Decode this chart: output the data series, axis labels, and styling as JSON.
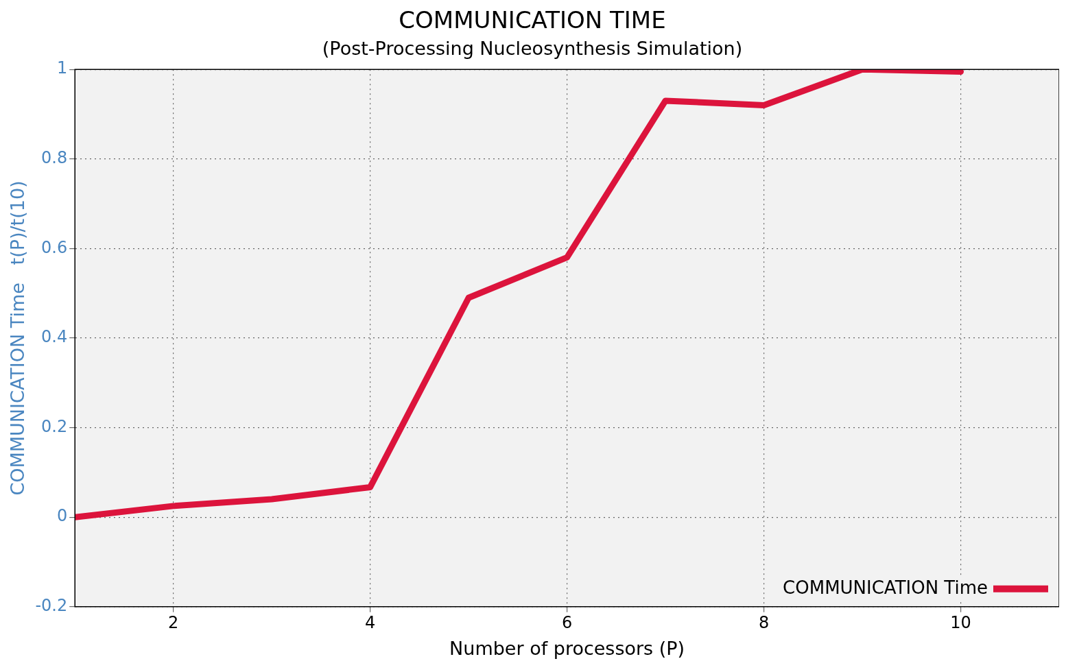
{
  "chart_data": {
    "type": "line",
    "title": "COMMUNICATION TIME",
    "subtitle": "(Post-Processing Nucleosynthesis Simulation)",
    "xlabel": "Number of processors (P)",
    "ylabel": "COMMUNICATION Time   t(P)/t(10)",
    "x": [
      1,
      2,
      3,
      4,
      5,
      6,
      7,
      8,
      9,
      10
    ],
    "series": [
      {
        "name": "COMMUNICATION Time",
        "color": "#dc143c",
        "values": [
          0,
          0.025,
          0.04,
          0.067,
          0.49,
          0.58,
          0.93,
          0.92,
          1.0,
          0.995
        ]
      }
    ],
    "xlim": [
      1,
      11
    ],
    "xticks": [
      2,
      4,
      6,
      8,
      10
    ],
    "ylim": [
      -0.2,
      1
    ],
    "yticks": [
      -0.2,
      0,
      0.2,
      0.4,
      0.6,
      0.8,
      1
    ],
    "grid": true,
    "legend": "bottom right",
    "marker": "none",
    "line_style": "solid"
  }
}
